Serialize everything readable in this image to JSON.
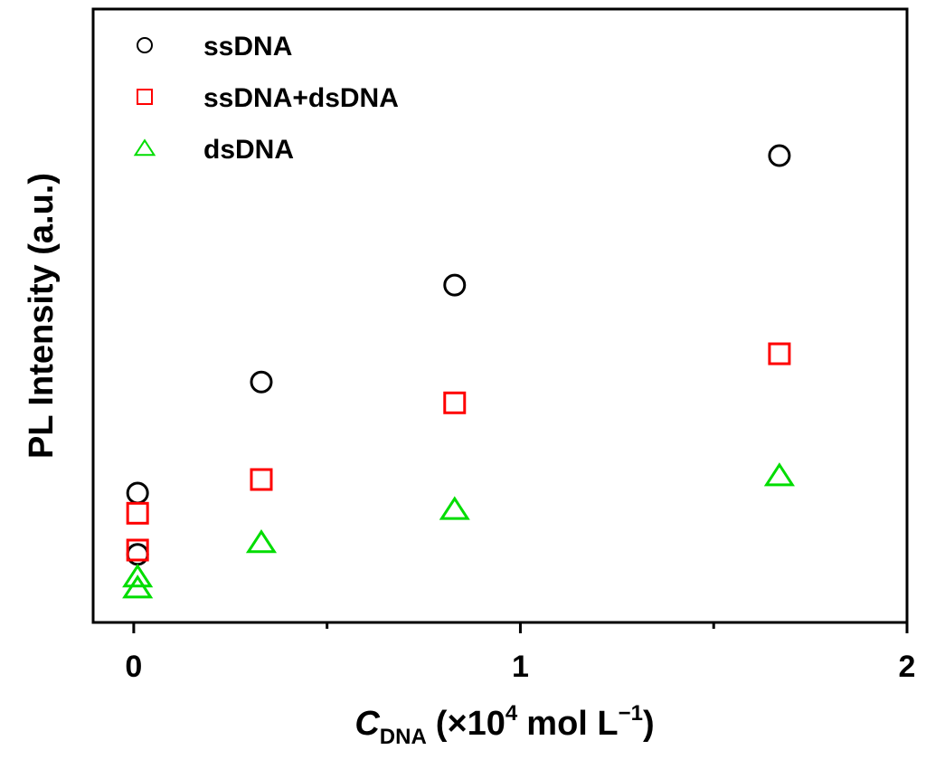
{
  "chart_data": {
    "type": "scatter",
    "y_label": "PL Intensity (a.u.)",
    "x_label": {
      "symbol": "C",
      "subscript": "DNA",
      "text": "(×10",
      "exponent": "4",
      "unit": "mol L",
      "unit_exponent": "−1",
      "close": ")"
    },
    "xlim": [
      -0.105,
      2
    ],
    "xticks": [
      0,
      1,
      2
    ],
    "xminorticks": [
      0.5,
      1.5
    ],
    "ylim": [
      0,
      100
    ],
    "legend": "upper left",
    "series": [
      {
        "name": "ssDNA",
        "color": "#000000",
        "marker": "circle",
        "x": [
          0.01,
          0.01,
          0.33,
          0.83,
          1.67
        ],
        "values": [
          21.1,
          11.1,
          39.2,
          55.0,
          76.1
        ]
      },
      {
        "name": "ssDNA+dsDNA",
        "color": "#ff0000",
        "marker": "square",
        "x": [
          0.01,
          0.01,
          0.33,
          0.83,
          1.67
        ],
        "values": [
          17.8,
          11.8,
          23.3,
          35.8,
          43.8
        ]
      },
      {
        "name": "dsDNA",
        "color": "#00dd00",
        "marker": "triangle",
        "x": [
          0.01,
          0.01,
          0.33,
          0.83,
          1.67
        ],
        "values": [
          7.4,
          5.6,
          13.0,
          18.4,
          23.9
        ]
      }
    ]
  }
}
